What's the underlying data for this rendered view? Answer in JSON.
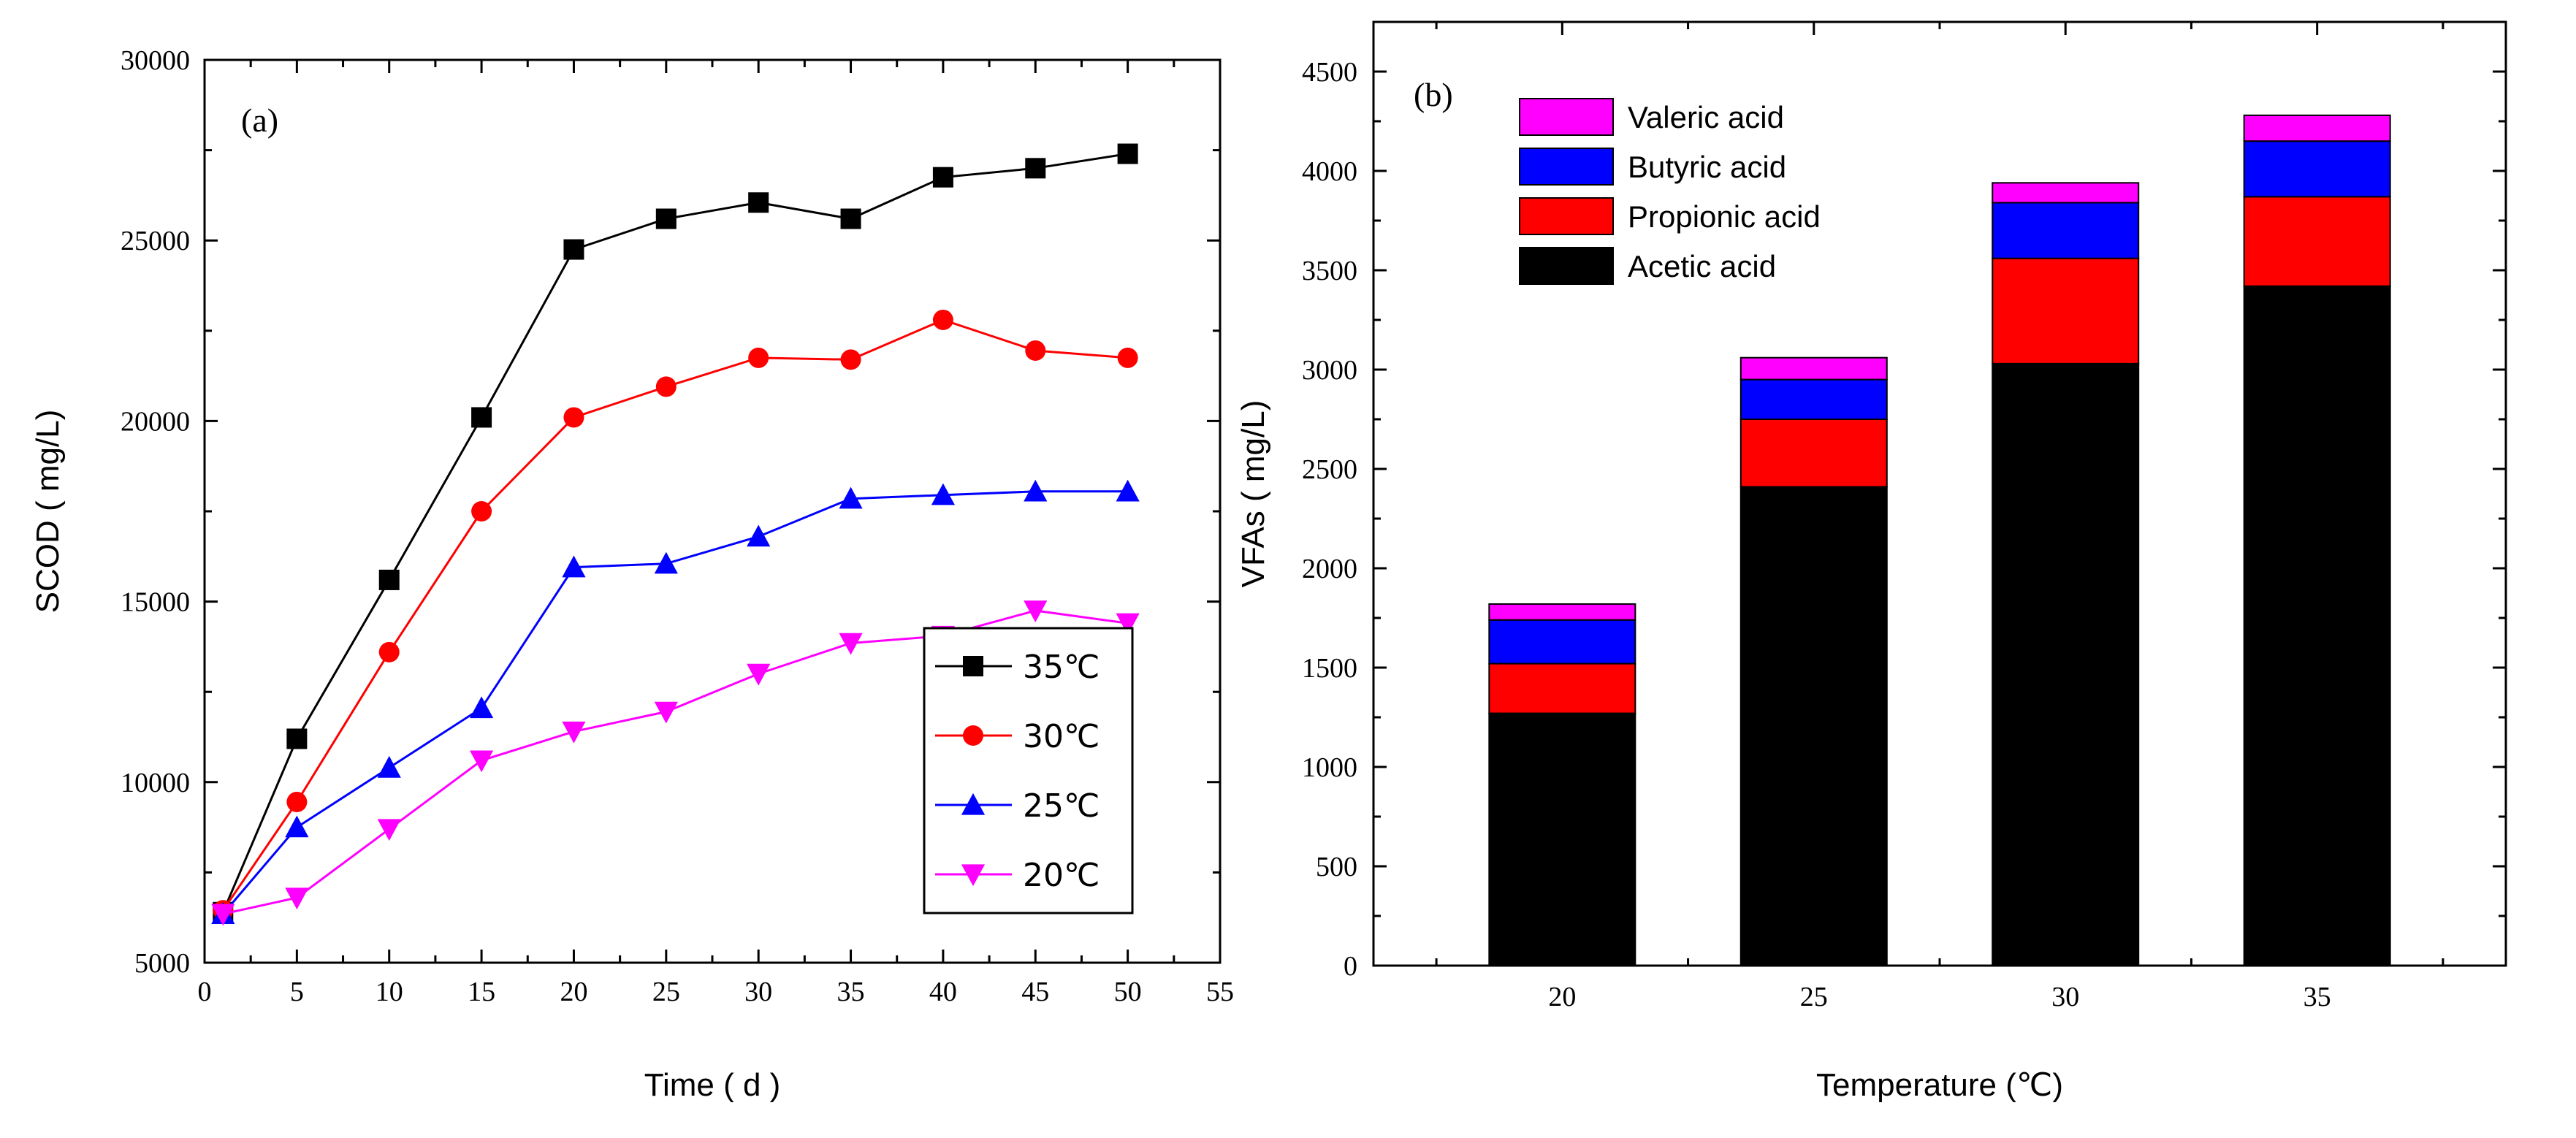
{
  "chart_data": [
    {
      "type": "line",
      "panel_label": "(a)",
      "title": "",
      "xlabel": "Time  ( d )",
      "ylabel": "SCOD ( mg/L)",
      "xlim": [
        0,
        55
      ],
      "ylim": [
        5000,
        30000
      ],
      "x_ticks": [
        "0",
        "5",
        "10",
        "15",
        "20",
        "25",
        "30",
        "35",
        "40",
        "45",
        "50",
        "55"
      ],
      "y_ticks": [
        "5000",
        "10000",
        "15000",
        "20000",
        "25000",
        "30000"
      ],
      "x": [
        1,
        5,
        10,
        15,
        20,
        25,
        30,
        35,
        40,
        45,
        50
      ],
      "series": [
        {
          "name": "35℃",
          "color": "#000000",
          "marker": "square",
          "values": [
            6400,
            11200,
            15600,
            20100,
            24750,
            25600,
            26050,
            25600,
            26750,
            27000,
            27400
          ]
        },
        {
          "name": "30℃",
          "color": "#ff0000",
          "marker": "circle",
          "values": [
            6450,
            9450,
            13600,
            17500,
            20100,
            20950,
            21750,
            21700,
            22800,
            21950,
            21750
          ]
        },
        {
          "name": "25℃",
          "color": "#0000ff",
          "marker": "triangle-up",
          "values": [
            6350,
            8750,
            10400,
            12050,
            15950,
            16050,
            16800,
            17850,
            17950,
            18050,
            18050
          ]
        },
        {
          "name": "20℃",
          "color": "#ff00ff",
          "marker": "triangle-down",
          "values": [
            6350,
            6800,
            8700,
            10600,
            11400,
            11950,
            13000,
            13850,
            14050,
            14750,
            14400
          ]
        }
      ],
      "legend_position": "center-right"
    },
    {
      "type": "bar",
      "stacked": true,
      "panel_label": "(b)",
      "title": "",
      "xlabel": "Temperature (℃)",
      "ylabel": "VFAs ( mg/L)",
      "ylim": [
        0,
        4750
      ],
      "y_ticks": [
        "0",
        "500",
        "1000",
        "1500",
        "2000",
        "2500",
        "3000",
        "3500",
        "4000",
        "4500"
      ],
      "categories": [
        "20",
        "25",
        "30",
        "35"
      ],
      "series": [
        {
          "name": "Acetic acid",
          "color": "#000000",
          "values": [
            1270,
            2410,
            3030,
            3420
          ]
        },
        {
          "name": "Propionic acid",
          "color": "#ff0000",
          "values": [
            250,
            340,
            530,
            450
          ]
        },
        {
          "name": "Butyric acid",
          "color": "#0000ff",
          "values": [
            220,
            200,
            280,
            280
          ]
        },
        {
          "name": "Valeric acid",
          "color": "#ff00ff",
          "values": [
            80,
            110,
            100,
            130
          ]
        }
      ],
      "legend_order": [
        "Valeric acid",
        "Butyric acid",
        "Propionic acid",
        "Acetic acid"
      ],
      "legend_position": "top-left"
    }
  ]
}
